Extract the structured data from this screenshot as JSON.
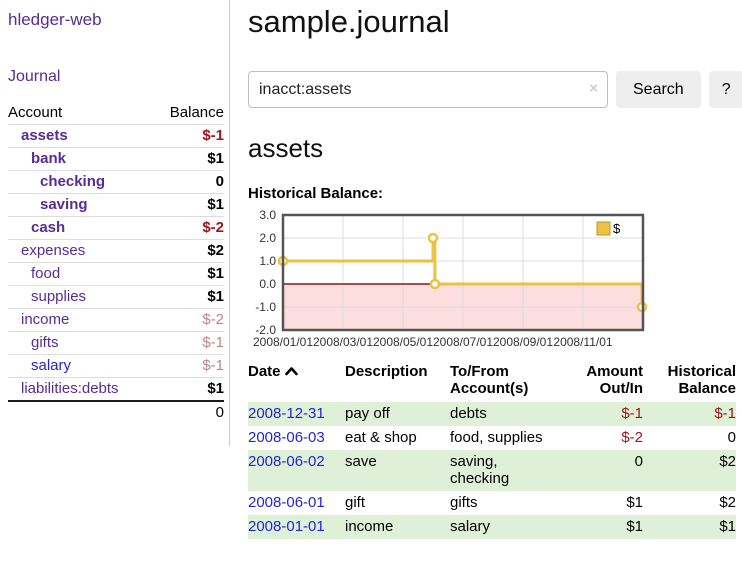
{
  "app": {
    "brand": "hledger-web",
    "nav_journal": "Journal"
  },
  "colors": {
    "link_purple": "#552d96",
    "link_blue": "#2323dc",
    "negative_strong": "#a01419",
    "negative_soft": "#c58285",
    "row_shade_green": "#dff0d8",
    "chart_line_gold": "#edc240"
  },
  "sidebar": {
    "table": {
      "col_account": "Account",
      "col_balance": "Balance"
    },
    "accounts": [
      {
        "name": "assets",
        "depth": 0,
        "bold": true,
        "balance": "$-1",
        "balance_style": "neg-strong"
      },
      {
        "name": "bank",
        "depth": 1,
        "bold": true,
        "balance": "$1",
        "balance_style": "pos"
      },
      {
        "name": "checking",
        "depth": 2,
        "bold": true,
        "balance": "0",
        "balance_style": "pos"
      },
      {
        "name": "saving",
        "depth": 2,
        "bold": true,
        "balance": "$1",
        "balance_style": "pos"
      },
      {
        "name": "cash",
        "depth": 1,
        "bold": true,
        "balance": "$-2",
        "balance_style": "neg-strong"
      },
      {
        "name": "expenses",
        "depth": 0,
        "bold": false,
        "balance": "$2",
        "balance_style": "pos"
      },
      {
        "name": "food",
        "depth": 1,
        "bold": false,
        "balance": "$1",
        "balance_style": "pos"
      },
      {
        "name": "supplies",
        "depth": 1,
        "bold": false,
        "balance": "$1",
        "balance_style": "pos"
      },
      {
        "name": "income",
        "depth": 0,
        "bold": false,
        "balance": "$-2",
        "balance_style": "neg-soft"
      },
      {
        "name": "gifts",
        "depth": 1,
        "bold": false,
        "balance": "$-1",
        "balance_style": "neg-soft"
      },
      {
        "name": "salary",
        "depth": 1,
        "bold": false,
        "balance": "$-1",
        "balance_style": "neg-soft",
        "link_color": "blue"
      },
      {
        "name": "liabilities:debts",
        "depth": 0,
        "bold": false,
        "balance": "$1",
        "balance_style": "pos"
      }
    ],
    "total": "0"
  },
  "main": {
    "title": "sample.journal",
    "search": {
      "value": "inacct:assets",
      "clear_icon": "×",
      "button": "Search",
      "help_button": "?"
    },
    "account_heading": "assets",
    "chart_heading": "Historical Balance:"
  },
  "chart_data": {
    "type": "line",
    "title": "Historical Balance:",
    "step": true,
    "ylim": [
      -2,
      3
    ],
    "y_ticks": [
      "3.0",
      "2.0",
      "1.0",
      "0.0",
      "-1.0",
      "-2.0"
    ],
    "x_tick_labels": [
      "2008/01/01",
      "2008/03/01",
      "2008/05/01",
      "2008/07/01",
      "2008/09/01",
      "2008/11/01"
    ],
    "x_range": [
      "2008-01-01",
      "2009-01-01"
    ],
    "series": [
      {
        "name": "$",
        "color": "#edc240",
        "points": [
          {
            "date": "2008-01-01",
            "value": 1.0
          },
          {
            "date": "2008-06-01",
            "value": 2.0
          },
          {
            "date": "2008-06-03",
            "value": 0.0
          },
          {
            "date": "2008-12-31",
            "value": -1.0
          }
        ]
      }
    ],
    "legend": "$",
    "legend_position": "top-right",
    "grid": true,
    "negative_fill": "#fcdede",
    "zero_line_color": "#8b1515",
    "border_color": "#545454",
    "gridline_color": "#dcdcdc"
  },
  "table": {
    "headers": {
      "date": "Date",
      "sort_icon": "chevron-up",
      "description": "Description",
      "accounts": "To/From\nAccount(s)",
      "amount": "Amount\nOut/In",
      "balance": "Historical\nBalance"
    },
    "rows": [
      {
        "date": "2008-12-31",
        "description": "pay off",
        "accounts": "debts",
        "amount": "$-1",
        "amount_neg": true,
        "balance": "$-1",
        "balance_neg": true,
        "shaded": true
      },
      {
        "date": "2008-06-03",
        "description": "eat & shop",
        "accounts": "food, supplies",
        "amount": "$-2",
        "amount_neg": true,
        "balance": "0",
        "balance_neg": false,
        "shaded": false
      },
      {
        "date": "2008-06-02",
        "description": "save",
        "accounts": "saving,\nchecking",
        "amount": "0",
        "amount_neg": false,
        "balance": "$2",
        "balance_neg": false,
        "shaded": true
      },
      {
        "date": "2008-06-01",
        "description": "gift",
        "accounts": "gifts",
        "amount": "$1",
        "amount_neg": false,
        "balance": "$2",
        "balance_neg": false,
        "shaded": false
      },
      {
        "date": "2008-01-01",
        "description": "income",
        "accounts": "salary",
        "amount": "$1",
        "amount_neg": false,
        "balance": "$1",
        "balance_neg": false,
        "shaded": true
      }
    ]
  }
}
